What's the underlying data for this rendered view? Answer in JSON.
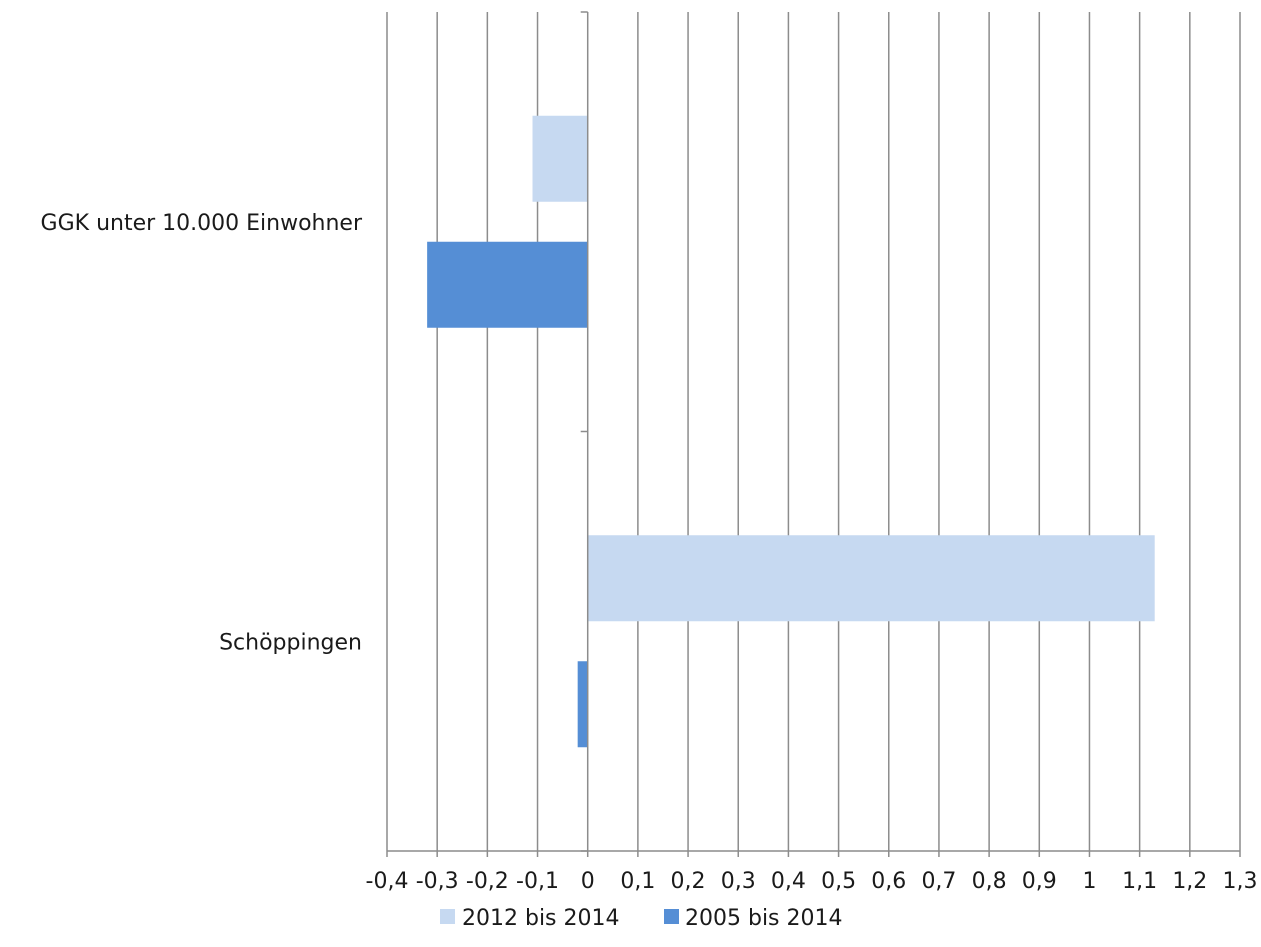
{
  "chart_data": {
    "type": "bar",
    "orientation": "horizontal",
    "categories": [
      "GGK unter 10.000 Einwohner",
      "Schöppingen"
    ],
    "series": [
      {
        "name": "2012 bis 2014",
        "color": "#c6d9f1",
        "values": [
          -0.11,
          1.13
        ]
      },
      {
        "name": "2005 bis 2014",
        "color": "#558ed5",
        "values": [
          -0.32,
          -0.02
        ]
      }
    ],
    "xlim": [
      -0.4,
      1.3
    ],
    "x_ticks": [
      -0.4,
      -0.3,
      -0.2,
      -0.1,
      0,
      0.1,
      0.2,
      0.3,
      0.4,
      0.5,
      0.6,
      0.7,
      0.8,
      0.9,
      1,
      1.1,
      1.2,
      1.3
    ],
    "x_tick_labels": [
      "-0,4",
      "-0,3",
      "-0,2",
      "-0,1",
      "0",
      "0,1",
      "0,2",
      "0,3",
      "0,4",
      "0,5",
      "0,6",
      "0,7",
      "0,8",
      "0,9",
      "1",
      "1,1",
      "1,2",
      "1,3"
    ],
    "gridlines": "vertical",
    "gridline_color": "#8c8c8c",
    "legend_position": "bottom"
  }
}
